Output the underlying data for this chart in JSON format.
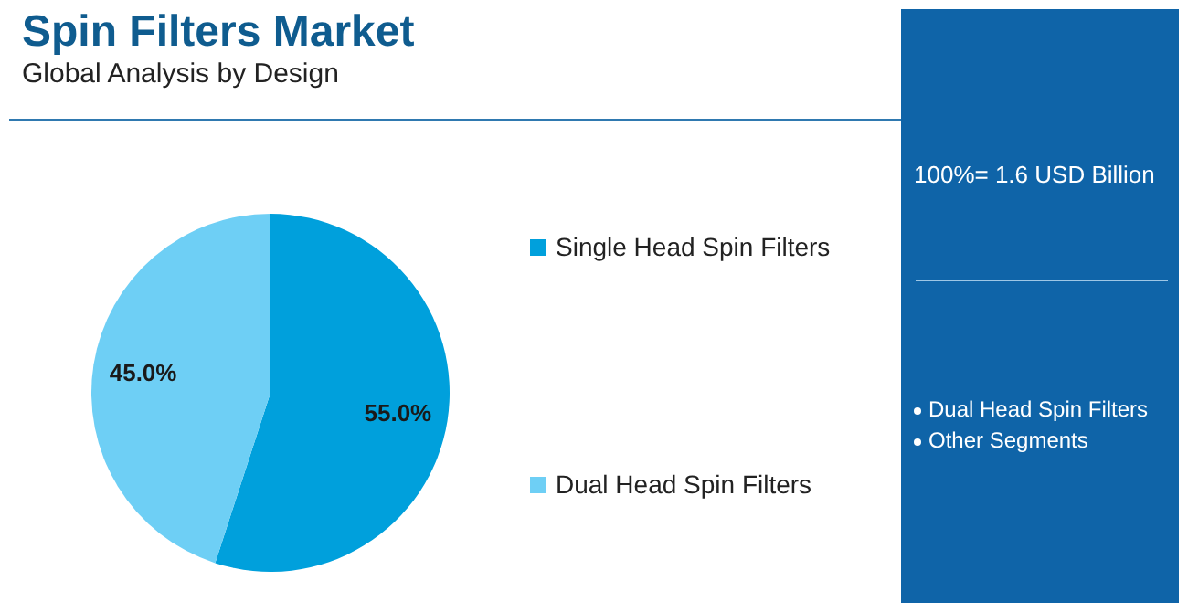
{
  "chart_data": {
    "type": "pie",
    "title": "Spin Filters Market",
    "subtitle": "Global Analysis by Design",
    "categories": [
      "Single Head Spin Filters",
      "Dual Head Spin Filters"
    ],
    "values": [
      55,
      45
    ],
    "value_labels": [
      "55.0%",
      "45.0%"
    ],
    "colors": [
      "#00a0dc",
      "#6ecff5"
    ],
    "legend": "right",
    "annotations": [
      "100%= 1.6 USD Billion",
      "Dual Head Spin Filters",
      "Other Segments"
    ]
  }
}
